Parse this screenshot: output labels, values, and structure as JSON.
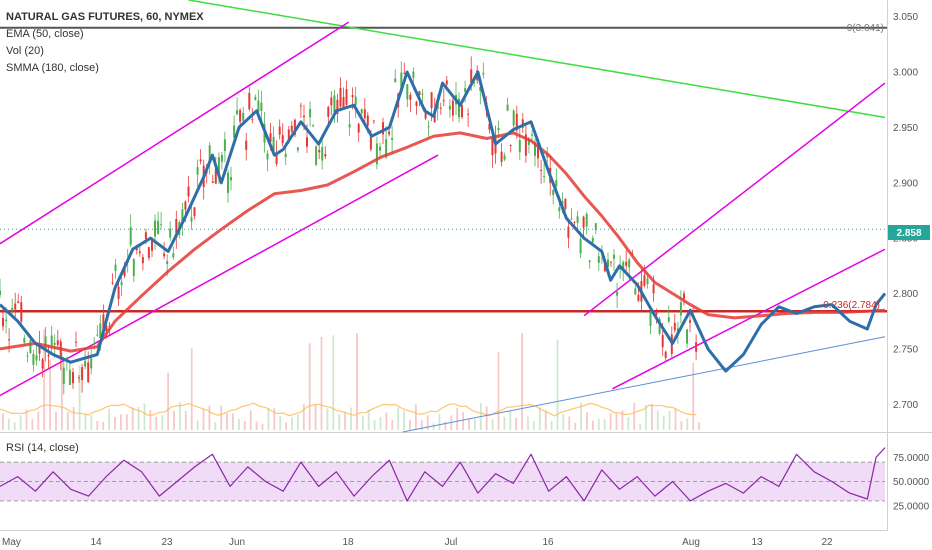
{
  "header": {
    "title": "NATURAL GAS FUTURES, 60, NYMEX",
    "ema": "EMA (50, close)",
    "vol": "Vol (20)",
    "smma": "SMMA (180, close)"
  },
  "rsi_label": "RSI (14, close)",
  "price_badge": "2.858",
  "fib": {
    "level_0": "0(3.041)",
    "level_0236": "0.236(2.784)"
  },
  "colors": {
    "ema": "#2f6fa8",
    "smma": "#e53935",
    "fib_0": "#555555",
    "fib_0236": "#c62828",
    "channel": "#e600e6",
    "downtrend": "#3fdc3f",
    "trendline_blue": "#5b8fd6",
    "rsi": "#8e24aa",
    "rsi_band": "#f0dcf6",
    "up": "#4caf50",
    "down": "#e53935",
    "badge": "#26a69a"
  },
  "chart_data": {
    "type": "line",
    "title": "NATURAL GAS FUTURES, 60, NYMEX",
    "x_labels": [
      "May",
      "14",
      "23",
      "Jun",
      "18",
      "Jul",
      "16",
      "Aug",
      "13",
      "22"
    ],
    "ylim": [
      2.675,
      3.065
    ],
    "y_ticks": [
      2.7,
      2.75,
      2.8,
      2.85,
      2.9,
      2.95,
      3.0,
      3.05
    ],
    "y_tick_labels": [
      "2.700",
      "2.750",
      "2.800",
      "2.850",
      "2.900",
      "2.950",
      "3.000",
      "3.050"
    ],
    "rsi_ticks": [
      25,
      50,
      75
    ],
    "rsi_tick_labels": [
      "25.0000",
      "50.0000",
      "75.0000"
    ],
    "rsi_band": [
      30,
      70
    ],
    "grid": false,
    "series": [
      {
        "name": "EMA (50, close)",
        "x": [
          0,
          2,
          4,
          6,
          8,
          11,
          13,
          15,
          17,
          19,
          21,
          23,
          24,
          25,
          27,
          29,
          31,
          32,
          34,
          36,
          38,
          40,
          42,
          44,
          46,
          48,
          49,
          50,
          52,
          54,
          56,
          58,
          60,
          62,
          64,
          66,
          68,
          69,
          70,
          72,
          74,
          76,
          78,
          80,
          82,
          84,
          86,
          88,
          90,
          92,
          94,
          96,
          98,
          99,
          100
        ],
        "values": [
          2.79,
          2.775,
          2.755,
          2.745,
          2.738,
          2.745,
          2.805,
          2.84,
          2.85,
          2.838,
          2.87,
          2.905,
          2.925,
          2.9,
          2.95,
          2.965,
          2.925,
          2.93,
          2.955,
          2.935,
          2.965,
          2.97,
          2.942,
          2.95,
          3.0,
          2.965,
          2.96,
          2.99,
          2.97,
          3.0,
          2.935,
          2.948,
          2.955,
          2.91,
          2.868,
          2.85,
          2.838,
          2.812,
          2.825,
          2.808,
          2.78,
          2.755,
          2.785,
          2.75,
          2.73,
          2.745,
          2.772,
          2.788,
          2.782,
          2.788,
          2.79,
          2.775,
          2.768,
          2.79,
          2.8
        ]
      },
      {
        "name": "SMMA (180, close)",
        "x": [
          0,
          4,
          8,
          11,
          13,
          16,
          19,
          22,
          25,
          28,
          31,
          34,
          37,
          40,
          43,
          46,
          49,
          52,
          55,
          58,
          60,
          62,
          64,
          66,
          68,
          70,
          72,
          74,
          76,
          78,
          80,
          83,
          86,
          89,
          92,
          95,
          98,
          100
        ],
        "values": [
          2.75,
          2.755,
          2.748,
          2.752,
          2.775,
          2.798,
          2.82,
          2.84,
          2.858,
          2.875,
          2.89,
          2.893,
          2.898,
          2.91,
          2.923,
          2.932,
          2.942,
          2.945,
          2.94,
          2.945,
          2.938,
          2.925,
          2.908,
          2.888,
          2.87,
          2.85,
          2.828,
          2.81,
          2.8,
          2.79,
          2.781,
          2.778,
          2.78,
          2.782,
          2.783,
          2.783,
          2.784,
          2.785
        ]
      },
      {
        "name": "RSI (14, close)",
        "x": [
          0,
          2,
          4,
          6,
          8,
          10,
          12,
          14,
          16,
          18,
          20,
          22,
          24,
          26,
          28,
          30,
          32,
          34,
          36,
          38,
          40,
          42,
          44,
          46,
          48,
          50,
          52,
          54,
          56,
          58,
          60,
          62,
          64,
          66,
          68,
          70,
          72,
          74,
          76,
          78,
          80,
          82,
          84,
          86,
          88,
          90,
          92,
          94,
          96,
          98,
          99,
          100
        ],
        "values": [
          45,
          55,
          40,
          60,
          42,
          35,
          55,
          72,
          60,
          35,
          50,
          65,
          78,
          45,
          65,
          50,
          40,
          70,
          45,
          60,
          35,
          55,
          72,
          30,
          60,
          45,
          70,
          38,
          58,
          48,
          78,
          40,
          55,
          30,
          62,
          42,
          55,
          35,
          50,
          30,
          40,
          48,
          38,
          55,
          45,
          78,
          60,
          50,
          38,
          32,
          75,
          85
        ]
      }
    ]
  }
}
